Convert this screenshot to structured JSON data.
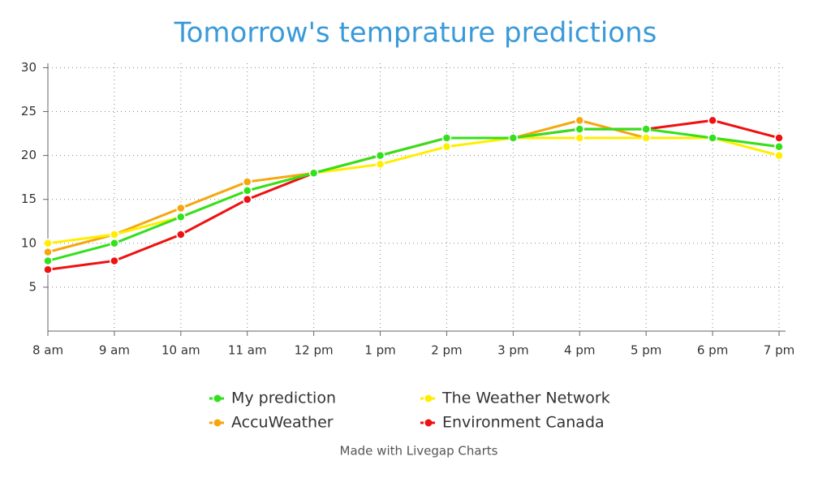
{
  "chart_data": {
    "type": "line",
    "title": "Tomorrow's temprature predictions",
    "categories": [
      "8 am",
      "9 am",
      "10 am",
      "11 am",
      "12 pm",
      "1 pm",
      "2 pm",
      "3 pm",
      "4 pm",
      "5 pm",
      "6 pm",
      "7 pm"
    ],
    "series": [
      {
        "name": "Environment Canada",
        "color": "#ee1111",
        "values": [
          7,
          8,
          11,
          15,
          18,
          20,
          22,
          22,
          23,
          23,
          24,
          22
        ]
      },
      {
        "name": "AccuWeather",
        "color": "#f5a70d",
        "values": [
          9,
          11,
          14,
          17,
          18,
          20,
          22,
          22,
          24,
          22,
          22,
          21
        ]
      },
      {
        "name": "The Weather Network",
        "color": "#ffee00",
        "values": [
          10,
          11,
          13,
          16,
          18,
          19,
          21,
          22,
          22,
          22,
          22,
          20
        ]
      },
      {
        "name": "My prediction",
        "color": "#33e01c",
        "values": [
          8,
          10,
          13,
          16,
          18,
          20,
          22,
          22,
          23,
          23,
          22,
          21
        ]
      }
    ],
    "legend_order": [
      3,
      2,
      1,
      0
    ],
    "ylim": [
      0,
      30.5
    ],
    "yticks": [
      5,
      10,
      15,
      20,
      25,
      30
    ],
    "grid": true,
    "footer": "Made with Livegap Charts"
  }
}
